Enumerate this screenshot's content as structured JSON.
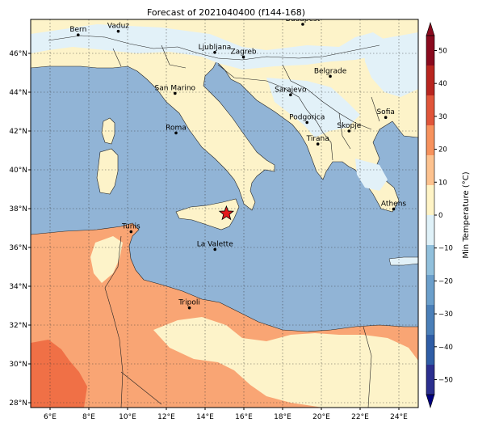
{
  "title": "Forecast of 2021040400 (f144-168)",
  "map": {
    "lon_min": 5.0,
    "lon_max": 25.0,
    "lat_min": 27.75,
    "lat_max": 47.75,
    "lon_ticks": [
      {
        "lon": 6,
        "label": "6°E"
      },
      {
        "lon": 8,
        "label": "8°E"
      },
      {
        "lon": 10,
        "label": "10°E"
      },
      {
        "lon": 12,
        "label": "12°E"
      },
      {
        "lon": 14,
        "label": "14°E"
      },
      {
        "lon": 16,
        "label": "16°E"
      },
      {
        "lon": 18,
        "label": "18°E"
      },
      {
        "lon": 20,
        "label": "20°E"
      },
      {
        "lon": 22,
        "label": "22°E"
      },
      {
        "lon": 24,
        "label": "24°E"
      }
    ],
    "lat_ticks": [
      {
        "lat": 28,
        "label": "28°N"
      },
      {
        "lat": 30,
        "label": "30°N"
      },
      {
        "lat": 32,
        "label": "32°N"
      },
      {
        "lat": 34,
        "label": "34°N"
      },
      {
        "lat": 36,
        "label": "36°N"
      },
      {
        "lat": 38,
        "label": "38°N"
      },
      {
        "lat": 40,
        "label": "40°N"
      },
      {
        "lat": 42,
        "label": "42°N"
      },
      {
        "lat": 44,
        "label": "44°N"
      },
      {
        "lat": 46,
        "label": "46°N"
      }
    ],
    "cities": [
      {
        "name": "Bern",
        "lon": 7.45,
        "lat": 46.95
      },
      {
        "name": "Vaduz",
        "lon": 9.52,
        "lat": 47.14
      },
      {
        "name": "Budapest",
        "lon": 19.04,
        "lat": 47.5
      },
      {
        "name": "Ljubljana",
        "lon": 14.5,
        "lat": 46.05
      },
      {
        "name": "Zagreb",
        "lon": 15.98,
        "lat": 45.81
      },
      {
        "name": "Belgrade",
        "lon": 20.46,
        "lat": 44.82
      },
      {
        "name": "San Marino",
        "lon": 12.45,
        "lat": 43.94
      },
      {
        "name": "Sarajevo",
        "lon": 18.41,
        "lat": 43.86
      },
      {
        "name": "Sofia",
        "lon": 23.32,
        "lat": 42.7
      },
      {
        "name": "Roma",
        "lon": 12.5,
        "lat": 41.9
      },
      {
        "name": "Podgorica",
        "lon": 19.26,
        "lat": 42.44
      },
      {
        "name": "Skopje",
        "lon": 21.43,
        "lat": 42.0
      },
      {
        "name": "Tirana",
        "lon": 19.82,
        "lat": 41.33
      },
      {
        "name": "Athens",
        "lon": 23.73,
        "lat": 37.98
      },
      {
        "name": "Tunis",
        "lon": 10.18,
        "lat": 36.81
      },
      {
        "name": "La Valette",
        "lon": 14.51,
        "lat": 35.9
      },
      {
        "name": "Tripoli",
        "lon": 13.19,
        "lat": 32.89
      }
    ],
    "marker": {
      "lon": 15.1,
      "lat": 37.75,
      "color": "#e31a1c"
    },
    "colors": {
      "sea": "#91b4d6",
      "land_warm": "#fdf3c9",
      "land_cold": "#e2f1f8",
      "hot": "#f9a574",
      "hotter": "#f07046",
      "border": "#222222"
    }
  },
  "colorbar": {
    "label": "Min Temperature (°C)",
    "ticks": [
      -50,
      -40,
      -30,
      -20,
      -10,
      0,
      10,
      20,
      30,
      40,
      50
    ],
    "colors": [
      "#2b2f8f",
      "#2f5da6",
      "#4a7fb8",
      "#6b9fcb",
      "#91c0dc",
      "#dff1f8",
      "#fff4c6",
      "#fdc28f",
      "#f7925d",
      "#e0553a",
      "#b8251f",
      "#8a0a1e"
    ]
  }
}
